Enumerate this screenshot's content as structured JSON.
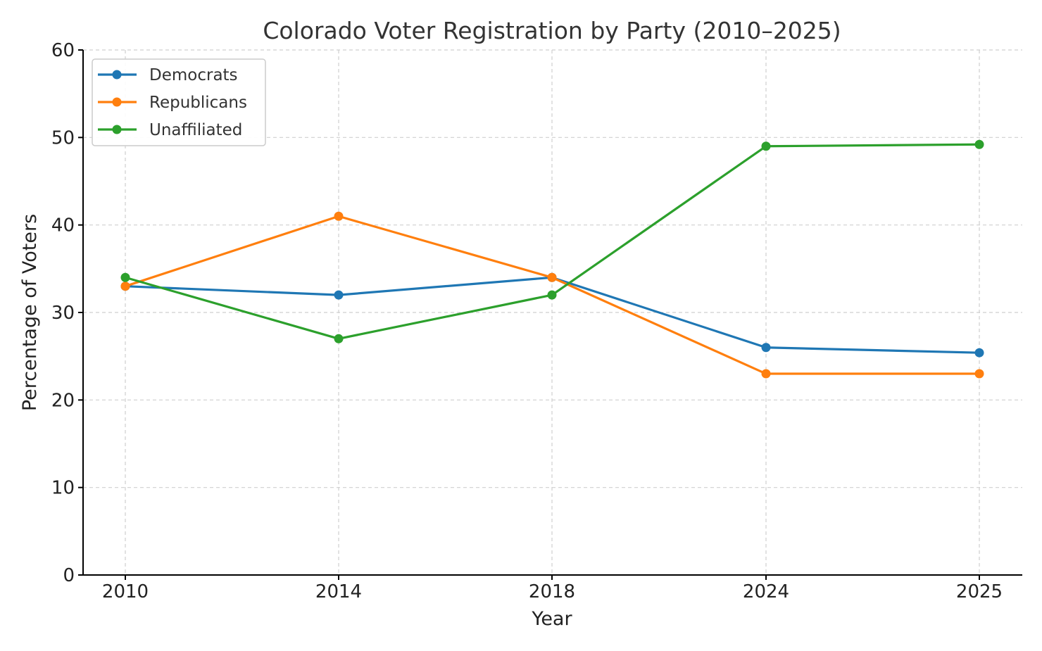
{
  "chart_data": {
    "type": "line",
    "title": "Colorado Voter Registration by Party (2010–2025)",
    "xlabel": "Year",
    "ylabel": "Percentage of Voters",
    "categories": [
      "2010",
      "2014",
      "2018",
      "2024",
      "2025"
    ],
    "ylim": [
      0,
      60
    ],
    "yticks": [
      0,
      10,
      20,
      30,
      40,
      50,
      60
    ],
    "grid": true,
    "legend_position": "top-left",
    "series": [
      {
        "name": "Democrats",
        "color": "#1f77b4",
        "values": [
          33,
          32,
          34,
          26,
          25.4
        ]
      },
      {
        "name": "Republicans",
        "color": "#ff7f0e",
        "values": [
          33,
          41,
          34,
          23,
          23
        ]
      },
      {
        "name": "Unaffiliated",
        "color": "#2ca02c",
        "values": [
          34,
          27,
          32,
          49,
          49.2
        ]
      }
    ]
  }
}
